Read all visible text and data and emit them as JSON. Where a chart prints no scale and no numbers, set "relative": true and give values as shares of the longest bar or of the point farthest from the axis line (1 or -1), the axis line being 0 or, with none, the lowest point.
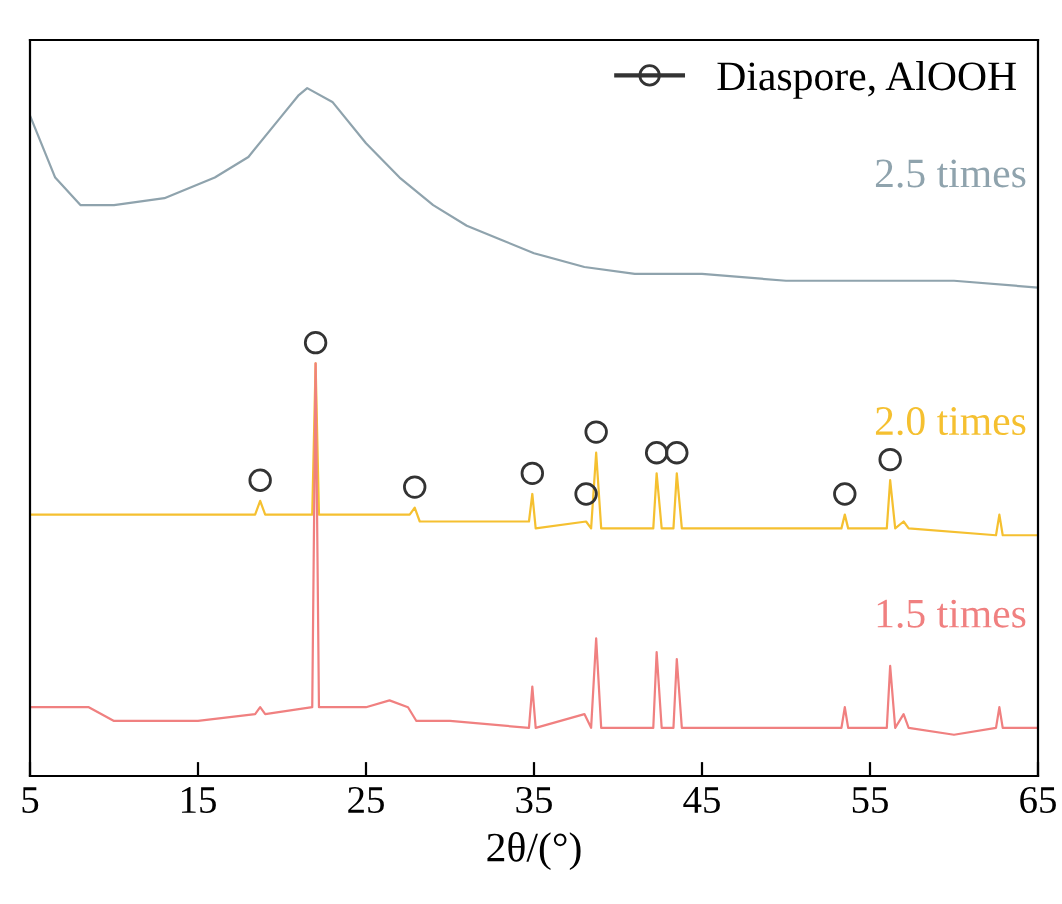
{
  "chart_data": {
    "type": "line",
    "relative": true,
    "xlabel": "2θ/(°)",
    "xlim": [
      5,
      65
    ],
    "xticks": [
      5,
      15,
      25,
      35,
      45,
      55,
      65
    ],
    "tick_labels": "x",
    "legend": "top right",
    "series": [
      {
        "name": "2.5 times",
        "color": "#8fa3ad",
        "x": [
          5,
          6.5,
          8,
          10,
          13,
          16,
          18,
          20,
          21,
          21.5,
          23,
          25,
          27,
          29,
          31,
          33,
          35,
          38,
          41,
          45,
          50,
          55,
          60,
          65
        ],
        "values": [
          0.96,
          0.87,
          0.83,
          0.83,
          0.84,
          0.87,
          0.9,
          0.96,
          0.99,
          1.0,
          0.98,
          0.92,
          0.87,
          0.83,
          0.8,
          0.78,
          0.76,
          0.74,
          0.73,
          0.73,
          0.72,
          0.72,
          0.72,
          0.71
        ]
      },
      {
        "name": "2.0 times",
        "color": "#f5c030",
        "x": [
          5,
          10,
          18.4,
          18.7,
          19,
          21.8,
          22,
          22.2,
          27.6,
          27.9,
          28.2,
          34.7,
          34.9,
          35.1,
          38.1,
          38.4,
          38.7,
          39,
          42.1,
          42.3,
          42.6,
          43.3,
          43.5,
          43.8,
          53.3,
          53.5,
          53.7,
          56.0,
          56.2,
          56.5,
          57,
          57.3,
          62.5,
          62.7,
          62.9,
          65
        ],
        "values": [
          0.38,
          0.38,
          0.38,
          0.4,
          0.38,
          0.38,
          0.6,
          0.38,
          0.38,
          0.39,
          0.37,
          0.37,
          0.41,
          0.36,
          0.37,
          0.36,
          0.47,
          0.36,
          0.36,
          0.44,
          0.36,
          0.36,
          0.44,
          0.36,
          0.36,
          0.38,
          0.36,
          0.36,
          0.43,
          0.36,
          0.37,
          0.36,
          0.35,
          0.38,
          0.35,
          0.35
        ]
      },
      {
        "name": "1.5 times",
        "color": "#f08080",
        "x": [
          5,
          8.5,
          10,
          15,
          18.4,
          18.7,
          19,
          21.8,
          22,
          22.2,
          25,
          26.4,
          27.5,
          28,
          30,
          34.7,
          34.9,
          35.1,
          38,
          38.4,
          38.7,
          39,
          42.1,
          42.3,
          42.6,
          43.3,
          43.5,
          43.8,
          50,
          53.3,
          53.5,
          53.7,
          56.0,
          56.2,
          56.5,
          57,
          57.3,
          60,
          62.5,
          62.7,
          62.9,
          65
        ],
        "values": [
          0.1,
          0.1,
          0.08,
          0.08,
          0.09,
          0.1,
          0.09,
          0.1,
          0.6,
          0.1,
          0.1,
          0.11,
          0.1,
          0.08,
          0.08,
          0.07,
          0.13,
          0.07,
          0.09,
          0.07,
          0.2,
          0.07,
          0.07,
          0.18,
          0.07,
          0.07,
          0.17,
          0.07,
          0.07,
          0.07,
          0.1,
          0.07,
          0.07,
          0.16,
          0.07,
          0.09,
          0.07,
          0.06,
          0.07,
          0.1,
          0.07,
          0.07
        ]
      },
      {
        "name": "Diaspore, AlOOH",
        "type": "scatter",
        "marker": "circle",
        "color": "#333333",
        "x": [
          18.7,
          22,
          27.9,
          34.9,
          38.1,
          38.7,
          42.3,
          43.5,
          53.5,
          56.2
        ],
        "values": [
          0.43,
          0.63,
          0.42,
          0.44,
          0.41,
          0.5,
          0.47,
          0.47,
          0.41,
          0.46
        ]
      }
    ]
  }
}
